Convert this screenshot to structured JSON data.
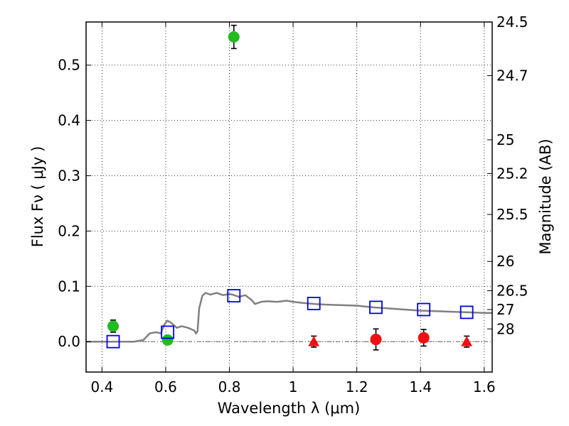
{
  "chart_data": {
    "type": "scatter",
    "xlabel": "Wavelength  λ (μm)",
    "ylabel": "Flux  Fν  ( μJy )",
    "ylabel_right": "Magnitude (AB)",
    "xlim": [
      0.35,
      1.625
    ],
    "ylim": [
      -0.055,
      0.578
    ],
    "grid": true,
    "x_ticks": [
      0.4,
      0.6,
      0.8,
      1.0,
      1.2,
      1.4,
      1.6
    ],
    "x_tick_labels": [
      "0.4",
      "0.6",
      "0.8",
      "1",
      "1.2",
      "1.4",
      "1.6"
    ],
    "y_ticks": [
      0.0,
      0.1,
      0.2,
      0.3,
      0.4,
      0.5
    ],
    "y_tick_labels": [
      "0.0",
      "0.1",
      "0.2",
      "0.3",
      "0.4",
      "0.5"
    ],
    "right_ticks": [
      {
        "label": "24.5",
        "flux": 0.578
      },
      {
        "label": "24.7",
        "flux": 0.481
      },
      {
        "label": "25",
        "flux": 0.365
      },
      {
        "label": "25.2",
        "flux": 0.304
      },
      {
        "label": "25.5",
        "flux": 0.23
      },
      {
        "label": "26",
        "flux": 0.145
      },
      {
        "label": "26.5",
        "flux": 0.092
      },
      {
        "label": "27",
        "flux": 0.058
      },
      {
        "label": "28",
        "flux": 0.023
      }
    ],
    "colors": {
      "model": "#808080",
      "detections": "#22bb22",
      "model_photometry": "#0000ee",
      "nondetections": "#ee1111",
      "upper_limits": "#ee1111",
      "errorbars": "#000000"
    },
    "series": [
      {
        "type": "line",
        "x": [
          0.35,
          0.42,
          0.46,
          0.5,
          0.53,
          0.55,
          0.57,
          0.585,
          0.595,
          0.605,
          0.615,
          0.625,
          0.635,
          0.65,
          0.67,
          0.69,
          0.695,
          0.7,
          0.705,
          0.715,
          0.725,
          0.74,
          0.76,
          0.78,
          0.8,
          0.81,
          0.83,
          0.85,
          0.87,
          0.88,
          0.9,
          0.92,
          0.95,
          0.98,
          1.0,
          1.03,
          1.07,
          1.1,
          1.15,
          1.2,
          1.25,
          1.3,
          1.35,
          1.4,
          1.45,
          1.5,
          1.55,
          1.6,
          1.625
        ],
        "y": [
          0.0,
          0.0,
          0.0,
          0.0,
          0.003,
          0.015,
          0.017,
          0.015,
          0.03,
          0.038,
          0.035,
          0.03,
          0.025,
          0.028,
          0.025,
          0.02,
          0.015,
          0.018,
          0.06,
          0.083,
          0.088,
          0.085,
          0.088,
          0.084,
          0.086,
          0.085,
          0.081,
          0.084,
          0.075,
          0.068,
          0.072,
          0.073,
          0.072,
          0.074,
          0.072,
          0.07,
          0.068,
          0.067,
          0.066,
          0.065,
          0.062,
          0.06,
          0.058,
          0.056,
          0.055,
          0.054,
          0.053,
          0.052,
          0.052
        ]
      },
      {
        "type": "scatter",
        "marker": "circle",
        "x": [
          0.435,
          0.606,
          0.814
        ],
        "y": [
          0.028,
          0.003,
          0.551
        ],
        "yerr": [
          0.011,
          0.008,
          0.021
        ]
      },
      {
        "type": "scatter",
        "marker": "square",
        "x": [
          0.435,
          0.606,
          0.814,
          1.065,
          1.26,
          1.41,
          1.545
        ],
        "y": [
          0.0,
          0.017,
          0.083,
          0.069,
          0.062,
          0.058,
          0.053
        ]
      },
      {
        "type": "scatter",
        "marker": "circle",
        "x": [
          1.26,
          1.41
        ],
        "y": [
          0.004,
          0.007
        ],
        "yerr": [
          0.019,
          0.015
        ]
      },
      {
        "type": "scatter",
        "marker": "triangle",
        "x": [
          1.065,
          1.545
        ],
        "y": [
          0.0,
          0.0
        ],
        "yerr": [
          0.01,
          0.01
        ]
      }
    ]
  }
}
